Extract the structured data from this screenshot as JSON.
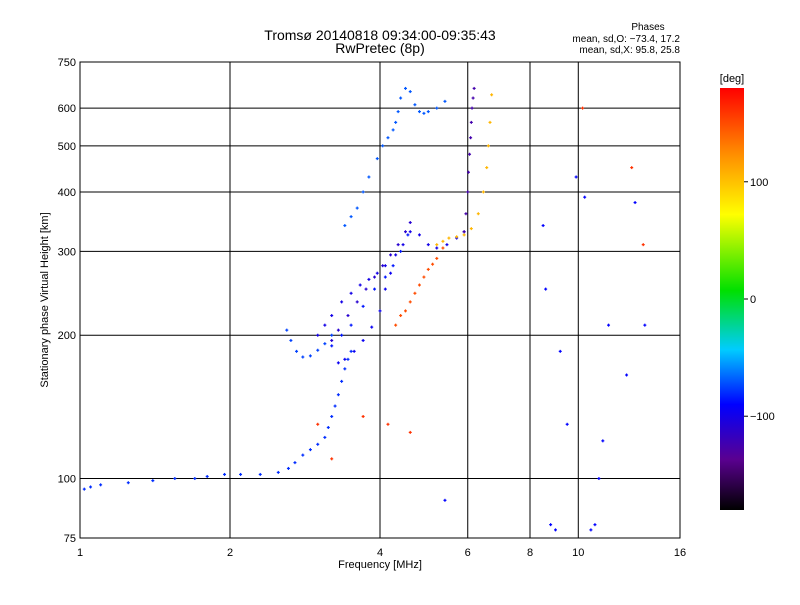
{
  "chart_data": {
    "type": "scatter",
    "title": "Tromsø 20140818 09:34:00-09:35:43",
    "subtitle": "RwPretec (8p)",
    "xlabel": "Frequency [MHz]",
    "ylabel": "Stationary phase Virtual Height [km]",
    "x_scale": "log",
    "y_scale": "log",
    "xlim": [
      1,
      16
    ],
    "ylim": [
      75,
      750
    ],
    "grid": true,
    "x_ticks": [
      1,
      2,
      4,
      6,
      8,
      10,
      16
    ],
    "x_tick_labels": [
      "1",
      "2",
      "4",
      "6",
      "8",
      "10",
      "16"
    ],
    "y_ticks": [
      75,
      100,
      200,
      300,
      400,
      500,
      600,
      750
    ],
    "y_tick_labels": [
      "75",
      "100",
      "200",
      "300",
      "400",
      "500",
      "600",
      "750"
    ],
    "phase_info": {
      "heading": "Phases",
      "o_line": "mean, sd,O: −73.4, 17.2",
      "x_line": "mean, sd,X:  95.8, 25.8"
    },
    "colorbar": {
      "label": "[deg]",
      "range": [
        -180,
        180
      ],
      "ticks": [
        -100,
        0,
        100
      ],
      "tick_labels": [
        "−100",
        "0",
        "100"
      ]
    },
    "traces": [
      {
        "x": [
          1.02,
          1.05,
          1.1,
          1.25,
          1.4,
          1.55,
          1.7,
          1.8,
          1.95,
          2.1,
          2.3,
          2.5,
          2.62,
          2.7,
          2.8,
          2.9,
          3.0,
          3.1,
          3.15,
          3.2,
          3.25,
          3.3,
          3.35,
          3.4,
          3.45,
          3.5
        ],
        "y": [
          95,
          96,
          97,
          98,
          99,
          100,
          100,
          101,
          102,
          102,
          102,
          103,
          105,
          108,
          112,
          115,
          118,
          122,
          128,
          135,
          142,
          150,
          160,
          170,
          178,
          185
        ],
        "phase": -80
      },
      {
        "x": [
          3.3,
          3.4,
          3.55,
          3.7,
          3.85,
          4.0,
          4.1,
          4.2
        ],
        "y": [
          175,
          178,
          185,
          195,
          208,
          225,
          250,
          270
        ],
        "phase": -95
      },
      {
        "x": [
          2.6,
          2.65,
          2.72,
          2.8,
          2.9,
          3.0,
          3.1,
          3.2
        ],
        "y": [
          205,
          195,
          185,
          180,
          181,
          186,
          192,
          200
        ],
        "phase": -75
      },
      {
        "x": [
          3.2,
          3.3,
          3.45,
          3.6,
          3.75,
          3.9,
          4.05,
          4.2,
          4.35,
          4.5,
          4.6
        ],
        "y": [
          195,
          205,
          220,
          235,
          250,
          265,
          280,
          295,
          310,
          330,
          345
        ],
        "phase": -110
      },
      {
        "x": [
          3.0,
          3.1,
          3.2,
          3.35,
          3.5,
          3.65,
          3.8,
          3.95,
          4.1,
          4.3,
          4.45,
          4.6,
          4.8,
          5.0,
          5.2,
          5.45,
          5.7,
          5.9
        ],
        "y": [
          200,
          210,
          220,
          235,
          245,
          255,
          262,
          270,
          280,
          295,
          310,
          330,
          325,
          310,
          305,
          310,
          320,
          330
        ],
        "phase": -100
      },
      {
        "x": [
          3.2,
          3.35,
          3.5,
          3.7,
          3.9,
          4.1,
          4.25,
          4.4,
          4.55
        ],
        "y": [
          190,
          200,
          210,
          230,
          250,
          265,
          280,
          300,
          325
        ],
        "phase": -85
      },
      {
        "x": [
          3.4,
          3.5,
          3.6,
          3.7,
          3.8,
          3.95,
          4.05,
          4.15,
          4.25,
          4.3,
          4.35,
          4.4,
          4.5,
          4.6,
          4.7,
          4.8,
          4.9,
          5.0,
          5.2,
          5.4
        ],
        "y": [
          340,
          355,
          370,
          400,
          430,
          470,
          500,
          520,
          540,
          560,
          590,
          630,
          660,
          650,
          610,
          590,
          585,
          590,
          600,
          620
        ],
        "phase": -70
      },
      {
        "x": [
          4.3,
          4.4,
          4.5,
          4.6,
          4.7,
          4.8,
          4.9,
          5.0,
          5.1,
          5.2,
          5.35
        ],
        "y": [
          210,
          220,
          225,
          235,
          245,
          255,
          265,
          275,
          282,
          290,
          305
        ],
        "phase": 150
      },
      {
        "x": [
          5.2,
          5.35,
          5.5,
          5.7,
          5.9,
          6.1,
          6.3,
          6.45,
          6.55,
          6.6,
          6.65,
          6.7
        ],
        "y": [
          310,
          315,
          320,
          322,
          325,
          335,
          360,
          400,
          450,
          500,
          560,
          640
        ],
        "phase": 105
      },
      {
        "x": [
          5.9,
          5.95,
          6.0,
          6.02,
          6.05,
          6.08,
          6.1,
          6.12,
          6.15,
          6.18
        ],
        "y": [
          330,
          360,
          400,
          440,
          480,
          520,
          560,
          600,
          630,
          660
        ],
        "phase": -125
      },
      {
        "x": [
          5.4,
          8.5,
          8.6,
          8.8,
          9.0,
          9.2,
          9.5,
          9.9,
          10.3,
          10.6,
          10.8,
          11.0,
          11.2,
          11.5,
          12.5,
          13.0,
          13.6
        ],
        "y": [
          90,
          340,
          250,
          80,
          78,
          185,
          130,
          430,
          390,
          78,
          80,
          100,
          120,
          210,
          165,
          380,
          210
        ],
        "phase": -90
      },
      {
        "x": [
          3.0,
          3.2,
          3.7,
          4.15,
          4.6,
          10.2,
          13.5,
          12.8
        ],
        "y": [
          130,
          110,
          135,
          130,
          125,
          600,
          310,
          450
        ],
        "phase": 160
      }
    ]
  }
}
